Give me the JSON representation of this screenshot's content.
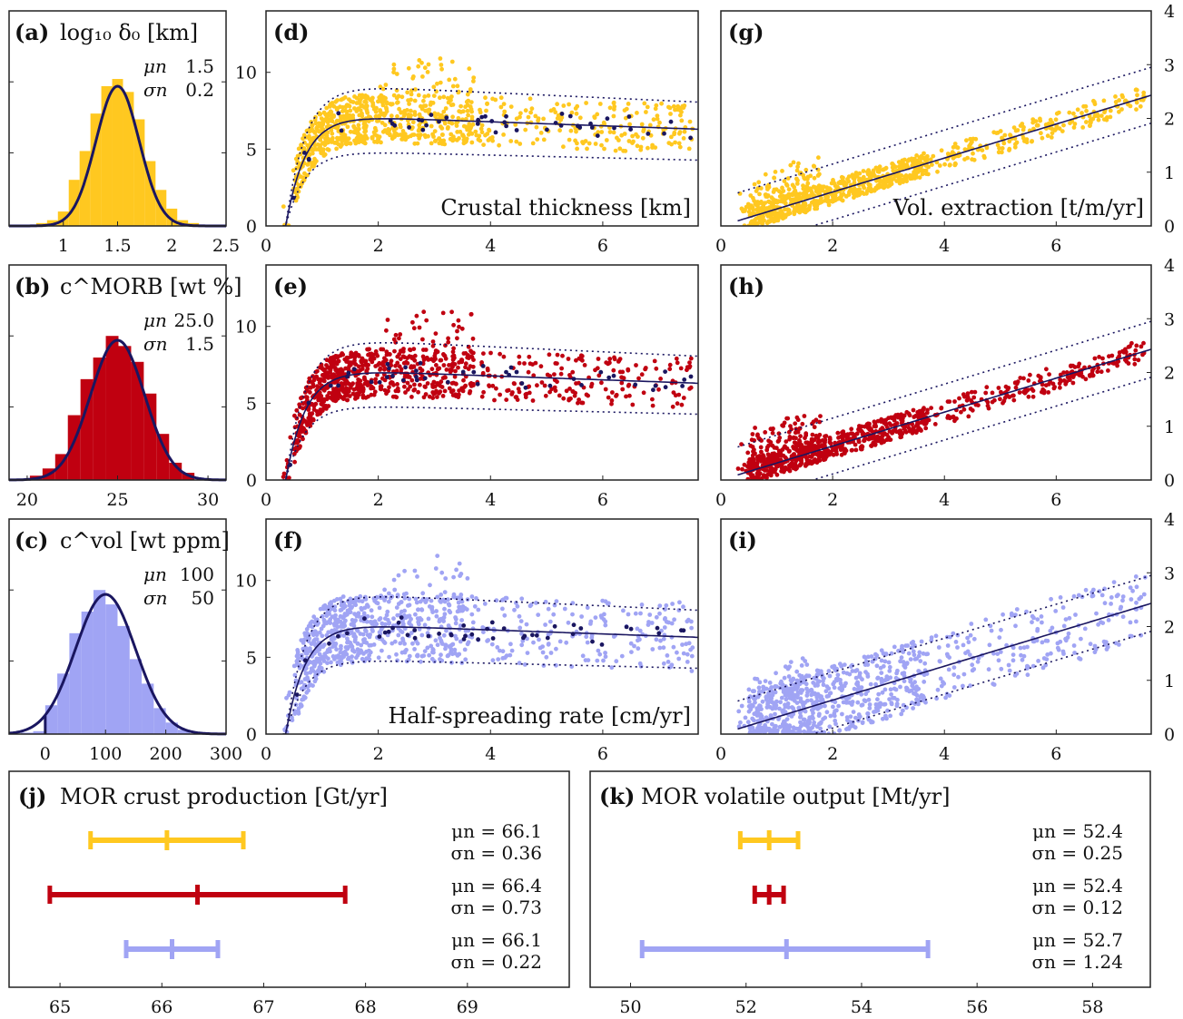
{
  "colors": {
    "yellow": "#ffc820",
    "red": "#c00010",
    "lavender": "#a0a4f4",
    "navy": "#1a1660"
  },
  "chart_data": [
    {
      "id": "a",
      "type": "histogram",
      "label": "(a)",
      "title": "log₁₀ δ₀ [km]",
      "stats": {
        "mu_label": "μn",
        "mu": "1.5",
        "sigma_label": "σn",
        "sigma": "0.2"
      },
      "xlim": [
        0.5,
        2.5
      ],
      "xticks": [
        "1",
        "1.5",
        "2",
        "2.5"
      ],
      "bin_width": 0.1,
      "bins": [
        0.8,
        0.9,
        1.0,
        1.1,
        1.2,
        1.3,
        1.4,
        1.5,
        1.6,
        1.7,
        1.8,
        1.9,
        2.0,
        2.1,
        2.2
      ],
      "values": [
        0.02,
        0.04,
        0.1,
        0.32,
        0.52,
        0.78,
        0.97,
        1.02,
        0.93,
        0.74,
        0.45,
        0.25,
        0.12,
        0.04,
        0.02
      ],
      "fit": {
        "mu": 1.5,
        "sigma": 0.2
      },
      "color": "#ffc820"
    },
    {
      "id": "b",
      "type": "histogram",
      "label": "(b)",
      "title": "c^MORB [wt %]",
      "stats": {
        "mu_label": "μn",
        "mu": "25.0",
        "sigma_label": "σn",
        "sigma": "1.5"
      },
      "xlim": [
        19,
        31
      ],
      "xticks": [
        "20",
        "25",
        "30"
      ],
      "bin_width": 0.7,
      "bins": [
        20.5,
        21.2,
        21.9,
        22.6,
        23.3,
        24.0,
        24.7,
        25.4,
        26.1,
        26.8,
        27.5,
        28.2,
        28.9
      ],
      "values": [
        0.03,
        0.08,
        0.18,
        0.45,
        0.7,
        0.85,
        1.0,
        0.93,
        0.82,
        0.6,
        0.32,
        0.12,
        0.05
      ],
      "fit": {
        "mu": 25.0,
        "sigma": 1.5
      },
      "color": "#c00010"
    },
    {
      "id": "c",
      "type": "histogram",
      "label": "(c)",
      "title": "c^vol [wt ppm]",
      "stats": {
        "mu_label": "μn",
        "mu": "100",
        "sigma_label": "σn",
        "sigma": "50"
      },
      "xlim": [
        -60,
        300
      ],
      "xticks": [
        "0",
        "100",
        "200",
        "300"
      ],
      "bin_width": 20,
      "bins": [
        -30,
        -10,
        10,
        30,
        50,
        70,
        90,
        110,
        130,
        150,
        170,
        190,
        210,
        230
      ],
      "values": [
        0.01,
        0.02,
        0.2,
        0.42,
        0.7,
        0.85,
        1.0,
        0.9,
        0.75,
        0.52,
        0.35,
        0.18,
        0.08,
        0.03
      ],
      "fit": {
        "mu": 100,
        "sigma": 50
      },
      "color": "#a0a4f4"
    },
    {
      "id": "d",
      "type": "scatter",
      "label": "(d)",
      "note": "Crustal thickness [km]",
      "xlim": [
        0,
        7.7
      ],
      "ylim": [
        0,
        14
      ],
      "xticks": [
        "0",
        "2",
        "4",
        "6"
      ],
      "yticks": [
        "0",
        "5",
        "10"
      ],
      "color": "#ffc820"
    },
    {
      "id": "e",
      "type": "scatter",
      "label": "(e)",
      "note": "",
      "xlim": [
        0,
        7.7
      ],
      "ylim": [
        0,
        14
      ],
      "xticks": [
        "0",
        "2",
        "4",
        "6"
      ],
      "yticks": [
        "0",
        "5",
        "10"
      ],
      "color": "#c00010"
    },
    {
      "id": "f",
      "type": "scatter",
      "label": "(f)",
      "note": "Half-spreading rate [cm/yr]",
      "xlim": [
        0,
        7.7
      ],
      "ylim": [
        0,
        14
      ],
      "xticks": [
        "0",
        "2",
        "4",
        "6"
      ],
      "yticks": [
        "0",
        "5",
        "10"
      ],
      "color": "#a0a4f4"
    },
    {
      "id": "g",
      "type": "scatter",
      "label": "(g)",
      "note": "Vol. extraction [t/m/yr]",
      "xlim": [
        0,
        7.7
      ],
      "ylim": [
        0,
        4
      ],
      "xticks": [
        "0",
        "2",
        "4",
        "6"
      ],
      "yticks": [
        "0",
        "1",
        "2",
        "3",
        "4"
      ],
      "color": "#ffc820"
    },
    {
      "id": "h",
      "type": "scatter",
      "label": "(h)",
      "note": "",
      "xlim": [
        0,
        7.7
      ],
      "ylim": [
        0,
        4
      ],
      "xticks": [
        "0",
        "2",
        "4",
        "6"
      ],
      "yticks": [
        "0",
        "1",
        "2",
        "3",
        "4"
      ],
      "color": "#c00010"
    },
    {
      "id": "i",
      "type": "scatter",
      "label": "(i)",
      "note": "",
      "xlim": [
        0,
        7.7
      ],
      "ylim": [
        0,
        4
      ],
      "xticks": [
        "0",
        "2",
        "4",
        "6"
      ],
      "yticks": [
        "0",
        "1",
        "2",
        "3",
        "4"
      ],
      "color": "#a0a4f4"
    },
    {
      "id": "j",
      "type": "errorbar",
      "label": "(j)",
      "title": "MOR crust production [Gt/yr]",
      "xlim": [
        64.5,
        70.0
      ],
      "xticks": [
        "65",
        "66",
        "67",
        "68",
        "69"
      ],
      "series": [
        {
          "mean": 66.05,
          "low": 65.3,
          "high": 66.8,
          "mu_text": "μn = 66.1",
          "sigma_text": "σn = 0.36",
          "color": "#ffc820"
        },
        {
          "mean": 66.35,
          "low": 64.9,
          "high": 67.8,
          "mu_text": "μn = 66.4",
          "sigma_text": "σn = 0.73",
          "color": "#c00010"
        },
        {
          "mean": 66.1,
          "low": 65.65,
          "high": 66.55,
          "mu_text": "μn = 66.1",
          "sigma_text": "σn = 0.22",
          "color": "#a0a4f4"
        }
      ]
    },
    {
      "id": "k",
      "type": "errorbar",
      "label": "(k)",
      "title": "MOR volatile output [Mt/yr]",
      "xlim": [
        49.3,
        59.0
      ],
      "xticks": [
        "50",
        "52",
        "54",
        "56",
        "58"
      ],
      "series": [
        {
          "mean": 52.4,
          "low": 51.9,
          "high": 52.9,
          "mu_text": "μn = 52.4",
          "sigma_text": "σn = 0.25",
          "color": "#ffc820"
        },
        {
          "mean": 52.4,
          "low": 52.15,
          "high": 52.65,
          "mu_text": "μn = 52.4",
          "sigma_text": "σn = 0.12",
          "color": "#c00010"
        },
        {
          "mean": 52.7,
          "low": 50.2,
          "high": 55.15,
          "mu_text": "μn = 52.7",
          "sigma_text": "σn = 1.24",
          "color": "#a0a4f4"
        }
      ]
    }
  ]
}
